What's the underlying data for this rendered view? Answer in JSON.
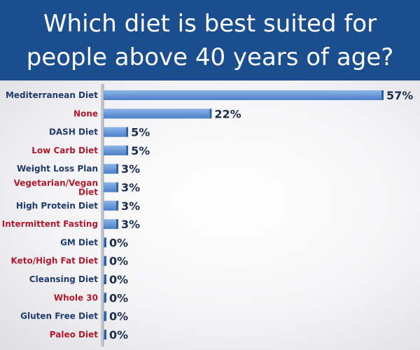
{
  "title": "Which diet is best suited for people above 40 years of age?",
  "colors": {
    "header_bg": "#1b4e8e",
    "bar_light": "#8fb5e8",
    "bar_dark": "#4a7fc8",
    "label_navy": "#1f3a6b",
    "label_red": "#b0192d",
    "value_text": "#1d2d4d"
  },
  "chart_data": {
    "type": "bar",
    "orientation": "horizontal",
    "categories": [
      "Mediterranean Diet",
      "None",
      "DASH Diet",
      "Low Carb Diet",
      "Weight Loss Plan",
      "Vegetarian/Vegan Diet",
      "High Protein Diet",
      "Intermittent Fasting",
      "GM Diet",
      "Keto/High Fat Diet",
      "Cleansing Diet",
      "Whole 30",
      "Gluten Free Diet",
      "Paleo Diet"
    ],
    "label_colors": [
      "#1f3a6b",
      "#b0192d",
      "#1f3a6b",
      "#b0192d",
      "#1f3a6b",
      "#b0192d",
      "#1f3a6b",
      "#b0192d",
      "#1f3a6b",
      "#b0192d",
      "#1f3a6b",
      "#b0192d",
      "#1f3a6b",
      "#b0192d"
    ],
    "values": [
      57,
      22,
      5,
      5,
      3,
      3,
      3,
      3,
      0,
      0,
      0,
      0,
      0,
      0
    ],
    "value_labels": [
      "57%",
      "22%",
      "5%",
      "5%",
      "3%",
      "3%",
      "3%",
      "3%",
      "0%",
      "0%",
      "0%",
      "0%",
      "0%",
      "0%"
    ],
    "title": "Which diet is best suited for people above 40 years of age?",
    "xlabel": "",
    "ylabel": "",
    "xlim": [
      0,
      57
    ],
    "grid": false,
    "legend": "none"
  }
}
